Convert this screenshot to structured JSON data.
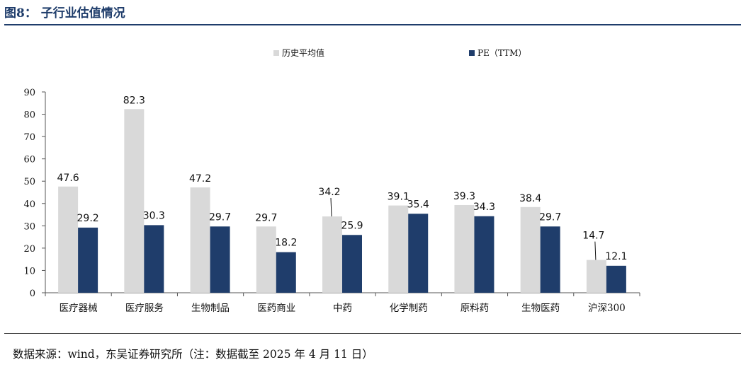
{
  "figure": {
    "title": "图8：  子行业估值情况",
    "source": "数据来源：wind，东吴证券研究所（注：数据截至 2025 年 4 月 11 日）"
  },
  "colors": {
    "title": "#1f3d6b",
    "hist": "#d9d9d9",
    "pe": "#1f3d6b"
  },
  "chart_data": {
    "type": "bar",
    "categories": [
      "医疗器械",
      "医疗服务",
      "生物制品",
      "医药商业",
      "中药",
      "化学制药",
      "原料药",
      "生物医药",
      "沪深300"
    ],
    "series": [
      {
        "name": "历史平均值",
        "values": [
          47.6,
          82.3,
          47.2,
          29.7,
          34.2,
          39.1,
          39.3,
          38.4,
          14.7
        ]
      },
      {
        "name": "PE（TTM）",
        "values": [
          29.2,
          30.3,
          29.7,
          18.2,
          25.9,
          35.4,
          34.3,
          29.7,
          12.1
        ]
      }
    ],
    "ylim": [
      0,
      90
    ],
    "yticks": [
      "0",
      "10",
      "20",
      "30",
      "40",
      "50",
      "60",
      "70",
      "80",
      "90"
    ],
    "legend_position": "top-center",
    "grid": false
  }
}
